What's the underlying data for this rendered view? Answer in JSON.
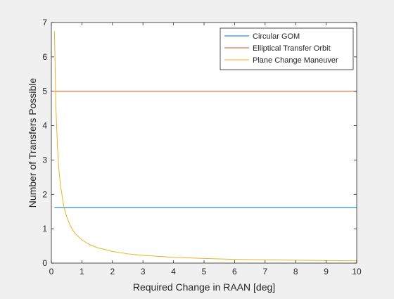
{
  "chart_data": {
    "type": "line",
    "title": "",
    "xlabel": "Required Change in RAAN [deg]",
    "ylabel": "Number of Transfers Possible",
    "xlim": [
      0,
      10
    ],
    "ylim": [
      0,
      7
    ],
    "xticks": [
      0,
      1,
      2,
      3,
      4,
      5,
      6,
      7,
      8,
      9,
      10
    ],
    "yticks": [
      0,
      1,
      2,
      3,
      4,
      5,
      6,
      7
    ],
    "grid": false,
    "legend_position": "top-right",
    "series": [
      {
        "name": "Circular GOM",
        "color": "#0072BD",
        "x": [
          0.1,
          10
        ],
        "y": [
          1.62,
          1.62
        ]
      },
      {
        "name": "Elliptical Transfer Orbit",
        "color": "#D95319",
        "x": [
          0.1,
          10
        ],
        "y": [
          5.0,
          5.0
        ]
      },
      {
        "name": "Plane Change Maneuver",
        "color": "#EDB120",
        "x": [
          0.1,
          0.15,
          0.2,
          0.25,
          0.3,
          0.4,
          0.5,
          0.6,
          0.7,
          0.8,
          1.0,
          1.25,
          1.5,
          2.0,
          2.5,
          3.0,
          4.0,
          5.0,
          6.0,
          7.0,
          8.0,
          9.0,
          10.0
        ],
        "y": [
          6.75,
          4.5,
          3.38,
          2.7,
          2.25,
          1.69,
          1.35,
          1.13,
          0.96,
          0.84,
          0.675,
          0.54,
          0.45,
          0.34,
          0.27,
          0.225,
          0.17,
          0.135,
          0.11,
          0.096,
          0.084,
          0.075,
          0.068
        ]
      }
    ]
  }
}
